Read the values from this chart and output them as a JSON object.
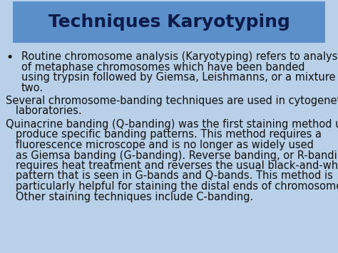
{
  "title": "Techniques Karyotyping",
  "title_bg_color": "#5b8fc9",
  "title_text_color": "#0d1b4b",
  "body_bg_color": "#b8d0e8",
  "body_text_color": "#111111",
  "bullet_text": "Routine chromosome analysis (Karyotyping) refers to analysis\nof metaphase chromosomes which have been banded\nusing trypsin followed by Giemsa, Leishmanns, or a mixture of the\ntwo.",
  "para1_line1": "Several chromosome-banding techniques are used in cytogenetics",
  "para1_line2": "   laboratories.",
  "para2": "Quinacrine banding (Q-banding) was the first staining method used to\n   produce specific banding patterns. This method requires a\n   fluorescence microscope and is no longer as widely used\n   as Giemsa banding (G-banding). Reverse banding, or R-banding,\n   requires heat treatment and reverses the usual black-and-white\n   pattern that is seen in G-bands and Q-bands. This method is\n   particularly helpful for staining the distal ends of chromosomes.\n   Other staining techniques include C-banding.",
  "title_fontsize": 18,
  "body_fontsize": 10.5,
  "fig_width": 4.74,
  "fig_height": 3.55,
  "dpi": 100
}
